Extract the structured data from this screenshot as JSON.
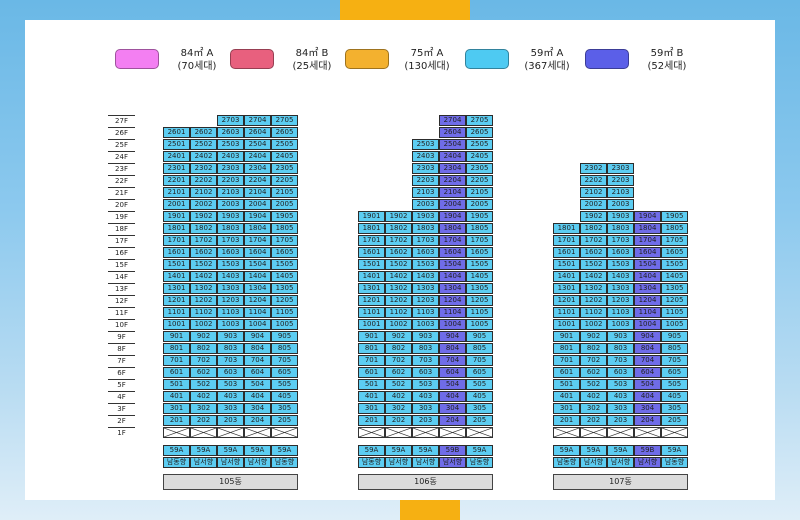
{
  "legend": [
    {
      "area": "84㎡ A",
      "units": "(70세대)",
      "color": "#f37ff2"
    },
    {
      "area": "84㎡ B",
      "units": "(25세대)",
      "color": "#e8607e"
    },
    {
      "area": "75㎡ A",
      "units": "(130세대)",
      "color": "#f3b12f"
    },
    {
      "area": "59㎡ A",
      "units": "(367세대)",
      "color": "#4ecaf2"
    },
    {
      "area": "59㎡ B",
      "units": "(52세대)",
      "color": "#5b5fe8"
    }
  ],
  "floor_labels": [
    "27F",
    "26F",
    "25F",
    "24F",
    "23F",
    "22F",
    "21F",
    "20F",
    "19F",
    "18F",
    "17F",
    "16F",
    "15F",
    "14F",
    "13F",
    "12F",
    "11F",
    "10F",
    "9F",
    "8F",
    "7F",
    "6F",
    "5F",
    "4F",
    "3F",
    "2F",
    "1F"
  ],
  "buildings": [
    {
      "name": "105동",
      "top_floors": [
        26,
        26,
        27,
        27,
        27
      ],
      "types": [
        "59A",
        "59A",
        "59A",
        "59A",
        "59A"
      ],
      "directions": [
        "남동향",
        "남서향",
        "남서향",
        "남서향",
        "남동향"
      ],
      "highlight_line": null
    },
    {
      "name": "106동",
      "top_floors": [
        19,
        19,
        25,
        27,
        27
      ],
      "types": [
        "59A",
        "59A",
        "59A",
        "59B",
        "59A"
      ],
      "directions": [
        "남동향",
        "남서향",
        "남서향",
        "남서향",
        "남동향"
      ],
      "highlight_line": 3
    },
    {
      "name": "107동",
      "top_floors": [
        18,
        23,
        23,
        19,
        19
      ],
      "types": [
        "59A",
        "59A",
        "59A",
        "59B",
        "59A"
      ],
      "directions": [
        "남동향",
        "남서향",
        "남서향",
        "남서향",
        "남동향"
      ],
      "highlight_line": 3
    }
  ],
  "colors": {
    "unit_59a": "#5ccdf2",
    "unit_59b": "#6f6ce8",
    "accent": "#f6b012"
  }
}
